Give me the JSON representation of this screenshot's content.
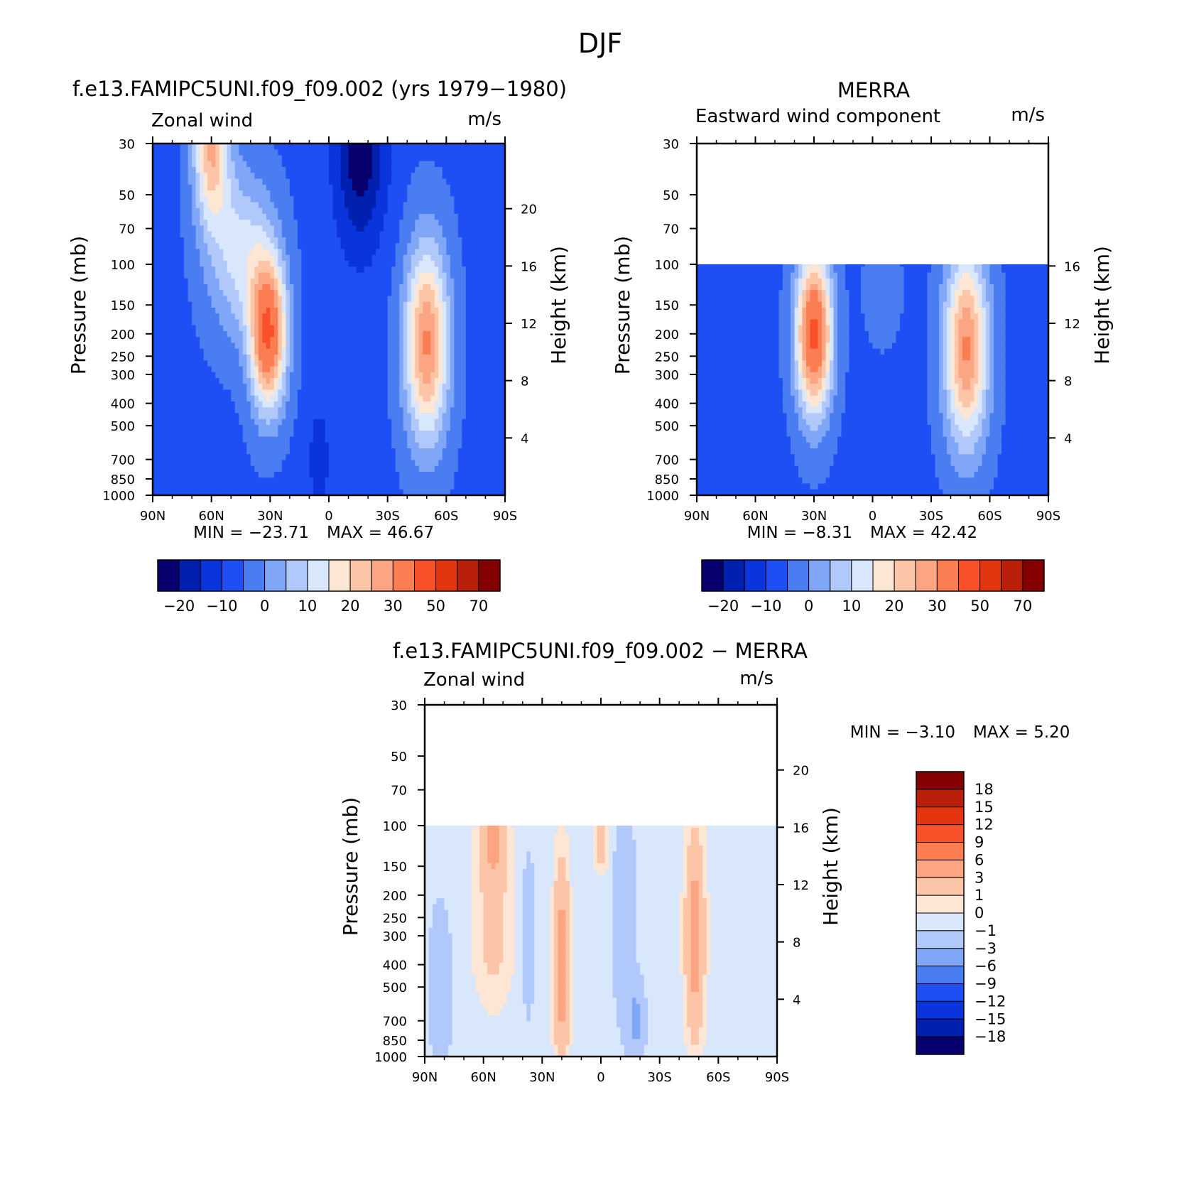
{
  "page_title": "DJF",
  "chart_data": [
    {
      "id": "model",
      "type": "contour",
      "title": "f.e13.FAMIPC5UNI.f09_f09.002 (yrs 1979−1980)",
      "left_label": "Zonal wind",
      "units": "m/s",
      "ylabel": "Pressure (mb)",
      "ylabel2": "Height (km)",
      "x_ticks": [
        "90N",
        "60N",
        "30N",
        "0",
        "30S",
        "60S",
        "90S"
      ],
      "x_values": [
        90,
        60,
        30,
        0,
        -30,
        -60,
        -90
      ],
      "y_ticks": [
        30,
        50,
        70,
        100,
        150,
        200,
        250,
        300,
        400,
        500,
        700,
        850,
        1000
      ],
      "ylim": [
        1000,
        30
      ],
      "height_ticks": [
        20,
        16,
        12,
        8,
        4
      ],
      "min_text": "MIN =   −23.71",
      "max_text": "MAX =    46.67",
      "min": -23.71,
      "max": 46.67,
      "data_floor_mb": 30,
      "colorbar": {
        "colors": [
          "#08006e",
          "#0220b0",
          "#0a35dc",
          "#1e4ff5",
          "#4a7cf2",
          "#7fa6f7",
          "#b0c8fa",
          "#d8e7fb",
          "#fde6d4",
          "#fdc5a7",
          "#fca582",
          "#fb7d52",
          "#f9522a",
          "#e3360f",
          "#b91f09",
          "#850000"
        ],
        "labels": [
          "−20",
          "−10",
          "0",
          "10",
          "20",
          "30",
          "50",
          "70"
        ]
      },
      "features": [
        {
          "lat": 57,
          "p": 33,
          "value": 30
        },
        {
          "lat": 30,
          "p": 195,
          "value": 46.67
        },
        {
          "lat": -50,
          "p": 220,
          "value": 36
        },
        {
          "lat": -17,
          "p": 37,
          "value": -23.71
        }
      ]
    },
    {
      "id": "obs",
      "type": "contour",
      "title": "MERRA",
      "left_label": "Eastward wind component",
      "units": "m/s",
      "ylabel": "Pressure (mb)",
      "ylabel2": "Height (km)",
      "x_ticks": [
        "90N",
        "60N",
        "30N",
        "0",
        "30S",
        "60S",
        "90S"
      ],
      "x_values": [
        90,
        60,
        30,
        0,
        -30,
        -60,
        -90
      ],
      "y_ticks": [
        30,
        50,
        70,
        100,
        150,
        200,
        250,
        300,
        400,
        500,
        700,
        850,
        1000
      ],
      "ylim": [
        1000,
        30
      ],
      "height_ticks": [
        16,
        12,
        8,
        4
      ],
      "min_text": "MIN =    −8.31",
      "max_text": "MAX =    42.42",
      "min": -8.31,
      "max": 42.42,
      "data_floor_mb": 100,
      "colorbar": {
        "colors": [
          "#08006e",
          "#0220b0",
          "#0a35dc",
          "#1e4ff5",
          "#4a7cf2",
          "#7fa6f7",
          "#b0c8fa",
          "#d8e7fb",
          "#fde6d4",
          "#fdc5a7",
          "#fca582",
          "#fb7d52",
          "#f9522a",
          "#e3360f",
          "#b91f09",
          "#850000"
        ],
        "labels": [
          "−20",
          "−10",
          "0",
          "10",
          "20",
          "30",
          "50",
          "70"
        ]
      },
      "features": [
        {
          "lat": 30,
          "p": 200,
          "value": 42.42
        },
        {
          "lat": -48,
          "p": 230,
          "value": 31
        },
        {
          "lat": 5,
          "p": 600,
          "value": -8.31
        }
      ]
    },
    {
      "id": "diff",
      "type": "contour",
      "title": "f.e13.FAMIPC5UNI.f09_f09.002 − MERRA",
      "left_label": "Zonal wind",
      "units": "m/s",
      "ylabel": "Pressure (mb)",
      "ylabel2": "Height (km)",
      "x_ticks": [
        "90N",
        "60N",
        "30N",
        "0",
        "30S",
        "60S",
        "90S"
      ],
      "x_values": [
        90,
        60,
        30,
        0,
        -30,
        -60,
        -90
      ],
      "y_ticks": [
        30,
        50,
        70,
        100,
        150,
        200,
        250,
        300,
        400,
        500,
        700,
        850,
        1000
      ],
      "ylim": [
        1000,
        30
      ],
      "height_ticks": [
        20,
        16,
        12,
        8,
        4
      ],
      "min_text": "MIN =    −3.10",
      "max_text": "MAX =     5.20",
      "min": -3.1,
      "max": 5.2,
      "data_floor_mb": 100,
      "colorbar": {
        "colors": [
          "#850000",
          "#b91f09",
          "#e3360f",
          "#f9522a",
          "#fb7d52",
          "#fca582",
          "#fdc5a7",
          "#fde6d4",
          "#d8e7fb",
          "#b0c8fa",
          "#7fa6f7",
          "#4a7cf2",
          "#1e4ff5",
          "#0a35dc",
          "#0220b0",
          "#08006e"
        ],
        "labels": [
          "18",
          "15",
          "12",
          "9",
          "6",
          "3",
          "1",
          "0",
          "−1",
          "−3",
          "−6",
          "−9",
          "−12",
          "−15",
          "−18"
        ]
      },
      "features": [
        {
          "lat": 55,
          "p": 115,
          "value": 4
        },
        {
          "lat": 20,
          "p": 400,
          "value": 5.2
        },
        {
          "lat": -48,
          "p": 300,
          "value": 5
        },
        {
          "lat": -18,
          "p": 700,
          "value": -3.1
        }
      ]
    }
  ]
}
